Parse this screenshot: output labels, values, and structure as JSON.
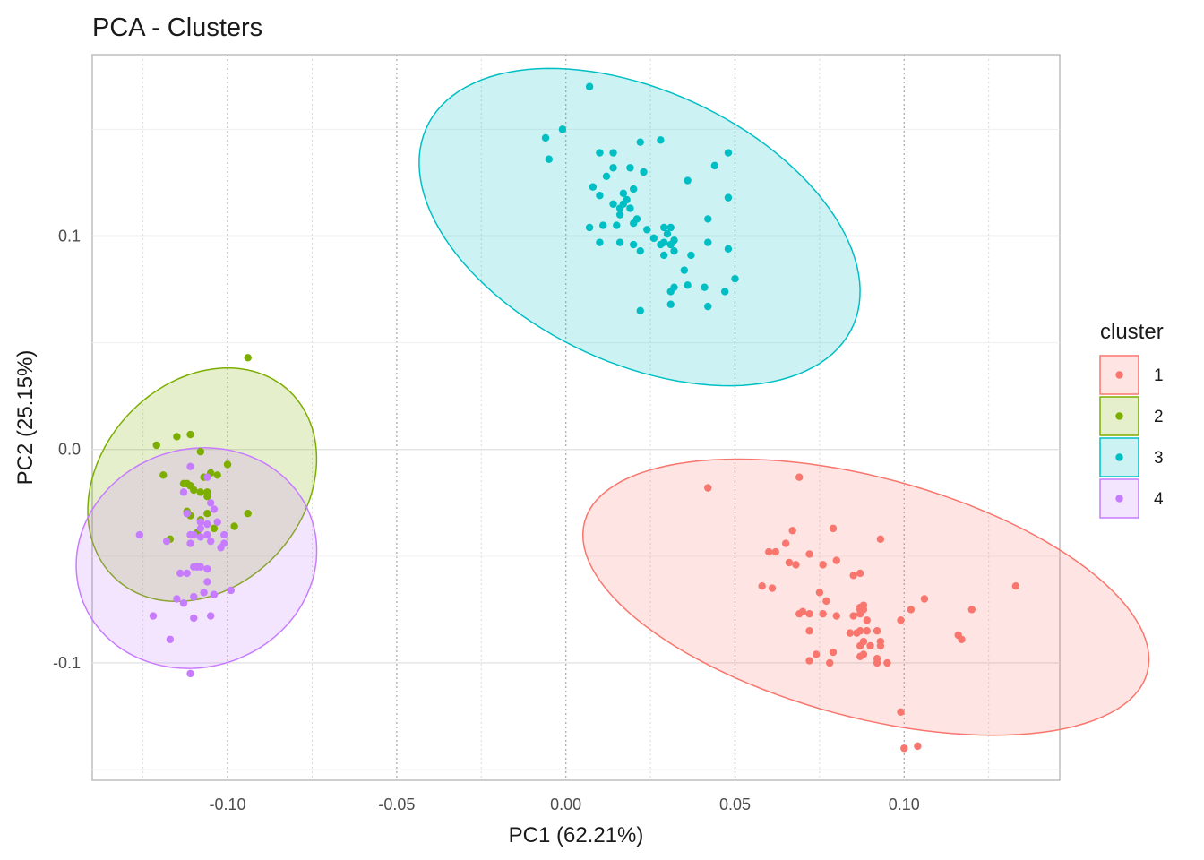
{
  "chart_data": {
    "type": "scatter",
    "title": "PCA - Clusters",
    "xlabel": "PC1 (62.21%)",
    "ylabel": "PC2 (25.15%)",
    "xlim": [
      -0.14,
      0.146
    ],
    "ylim": [
      -0.155,
      0.185
    ],
    "xticks": [
      -0.1,
      -0.05,
      0.0,
      0.05,
      0.1
    ],
    "xtick_labels": [
      "-0.10",
      "-0.05",
      "0.00",
      "0.05",
      "0.10"
    ],
    "yticks": [
      -0.1,
      0.0,
      0.1
    ],
    "ytick_labels": [
      "-0.1",
      "0.0",
      "0.1"
    ],
    "grid": true,
    "legend": {
      "title": "cluster",
      "position": "right"
    },
    "series": [
      {
        "name": "1",
        "color": "#F8766D",
        "ellipse": {
          "cx": 0.0887,
          "cy": -0.0692,
          "rx": 0.0917,
          "ry": 0.0527,
          "angle_deg": -30
        },
        "points": [
          [
            0.042,
            -0.018
          ],
          [
            0.069,
            -0.013
          ],
          [
            0.067,
            -0.038
          ],
          [
            0.079,
            -0.037
          ],
          [
            0.093,
            -0.042
          ],
          [
            0.065,
            -0.044
          ],
          [
            0.072,
            -0.049
          ],
          [
            0.062,
            -0.048
          ],
          [
            0.06,
            -0.048
          ],
          [
            0.066,
            -0.053
          ],
          [
            0.068,
            -0.054
          ],
          [
            0.076,
            -0.054
          ],
          [
            0.08,
            -0.052
          ],
          [
            0.085,
            -0.059
          ],
          [
            0.087,
            -0.058
          ],
          [
            0.058,
            -0.064
          ],
          [
            0.061,
            -0.065
          ],
          [
            0.075,
            -0.067
          ],
          [
            0.077,
            -0.071
          ],
          [
            0.085,
            -0.078
          ],
          [
            0.088,
            -0.073
          ],
          [
            0.087,
            -0.075
          ],
          [
            0.088,
            -0.075
          ],
          [
            0.087,
            -0.074
          ],
          [
            0.087,
            -0.077
          ],
          [
            0.089,
            -0.08
          ],
          [
            0.069,
            -0.077
          ],
          [
            0.072,
            -0.077
          ],
          [
            0.07,
            -0.076
          ],
          [
            0.08,
            -0.078
          ],
          [
            0.076,
            -0.077
          ],
          [
            0.087,
            -0.085
          ],
          [
            0.092,
            -0.085
          ],
          [
            0.099,
            -0.08
          ],
          [
            0.102,
            -0.075
          ],
          [
            0.106,
            -0.07
          ],
          [
            0.072,
            -0.085
          ],
          [
            0.086,
            -0.086
          ],
          [
            0.084,
            -0.086
          ],
          [
            0.089,
            -0.085
          ],
          [
            0.088,
            -0.09
          ],
          [
            0.093,
            -0.09
          ],
          [
            0.093,
            -0.092
          ],
          [
            0.087,
            -0.092
          ],
          [
            0.09,
            -0.092
          ],
          [
            0.079,
            -0.095
          ],
          [
            0.074,
            -0.096
          ],
          [
            0.072,
            -0.099
          ],
          [
            0.078,
            -0.1
          ],
          [
            0.092,
            -0.098
          ],
          [
            0.095,
            -0.1
          ],
          [
            0.088,
            -0.096
          ],
          [
            0.087,
            -0.097
          ],
          [
            0.12,
            -0.075
          ],
          [
            0.116,
            -0.087
          ],
          [
            0.117,
            -0.089
          ],
          [
            0.133,
            -0.064
          ],
          [
            0.099,
            -0.123
          ],
          [
            0.1,
            -0.14
          ],
          [
            0.104,
            -0.139
          ],
          [
            0.092,
            -0.1
          ]
        ]
      },
      {
        "name": "2",
        "color": "#7CAE00",
        "ellipse": {
          "cx": -0.1075,
          "cy": -0.0165,
          "rx": 0.0555,
          "ry": 0.0325,
          "angle_deg": 78
        },
        "points": [
          [
            -0.094,
            0.043
          ],
          [
            -0.111,
            0.007
          ],
          [
            -0.115,
            0.006
          ],
          [
            -0.121,
            0.002
          ],
          [
            -0.108,
            -0.001
          ],
          [
            -0.1,
            -0.007
          ],
          [
            -0.105,
            -0.011
          ],
          [
            -0.107,
            -0.013
          ],
          [
            -0.103,
            -0.012
          ],
          [
            -0.119,
            -0.012
          ],
          [
            -0.113,
            -0.016
          ],
          [
            -0.112,
            -0.016
          ],
          [
            -0.111,
            -0.017
          ],
          [
            -0.108,
            -0.02
          ],
          [
            -0.106,
            -0.02
          ],
          [
            -0.106,
            -0.022
          ],
          [
            -0.11,
            -0.019
          ],
          [
            -0.112,
            -0.029
          ],
          [
            -0.106,
            -0.03
          ],
          [
            -0.111,
            -0.031
          ],
          [
            -0.108,
            -0.033
          ],
          [
            -0.094,
            -0.03
          ],
          [
            -0.098,
            -0.036
          ],
          [
            -0.117,
            -0.042
          ],
          [
            -0.109,
            -0.039
          ],
          [
            -0.104,
            -0.037
          ]
        ]
      },
      {
        "name": "3",
        "color": "#00BFC4",
        "ellipse": {
          "cx": 0.0218,
          "cy": 0.1042,
          "rx": 0.0834,
          "ry": 0.0531,
          "angle_deg": -54
        },
        "points": [
          [
            0.007,
            0.17
          ],
          [
            0.028,
            0.145
          ],
          [
            0.022,
            0.144
          ],
          [
            0.048,
            0.139
          ],
          [
            0.044,
            0.133
          ],
          [
            -0.001,
            0.15
          ],
          [
            -0.006,
            0.146
          ],
          [
            -0.005,
            0.136
          ],
          [
            0.01,
            0.139
          ],
          [
            0.014,
            0.139
          ],
          [
            0.012,
            0.128
          ],
          [
            0.014,
            0.132
          ],
          [
            0.019,
            0.132
          ],
          [
            0.023,
            0.13
          ],
          [
            0.008,
            0.123
          ],
          [
            0.02,
            0.122
          ],
          [
            0.017,
            0.12
          ],
          [
            0.01,
            0.119
          ],
          [
            0.018,
            0.117
          ],
          [
            0.036,
            0.126
          ],
          [
            0.048,
            0.118
          ],
          [
            0.014,
            0.115
          ],
          [
            0.019,
            0.113
          ],
          [
            0.016,
            0.113
          ],
          [
            0.017,
            0.115
          ],
          [
            0.016,
            0.11
          ],
          [
            0.015,
            0.105
          ],
          [
            0.021,
            0.108
          ],
          [
            0.02,
            0.106
          ],
          [
            0.011,
            0.105
          ],
          [
            0.024,
            0.103
          ],
          [
            0.029,
            0.104
          ],
          [
            0.042,
            0.108
          ],
          [
            0.031,
            0.104
          ],
          [
            0.007,
            0.104
          ],
          [
            0.026,
            0.099
          ],
          [
            0.03,
            0.101
          ],
          [
            0.029,
            0.097
          ],
          [
            0.028,
            0.096
          ],
          [
            0.032,
            0.098
          ],
          [
            0.01,
            0.097
          ],
          [
            0.016,
            0.097
          ],
          [
            0.02,
            0.096
          ],
          [
            0.022,
            0.093
          ],
          [
            0.031,
            0.096
          ],
          [
            0.032,
            0.093
          ],
          [
            0.042,
            0.097
          ],
          [
            0.048,
            0.094
          ],
          [
            0.029,
            0.091
          ],
          [
            0.037,
            0.091
          ],
          [
            0.035,
            0.084
          ],
          [
            0.032,
            0.076
          ],
          [
            0.036,
            0.077
          ],
          [
            0.031,
            0.074
          ],
          [
            0.05,
            0.08
          ],
          [
            0.041,
            0.076
          ],
          [
            0.047,
            0.074
          ],
          [
            0.031,
            0.068
          ],
          [
            0.042,
            0.067
          ],
          [
            0.022,
            0.065
          ]
        ]
      },
      {
        "name": "4",
        "color": "#C77CFF",
        "ellipse": {
          "cx": -0.1092,
          "cy": -0.0509,
          "rx": 0.0518,
          "ry": 0.0354,
          "angle_deg": 85
        },
        "points": [
          [
            -0.111,
            -0.008
          ],
          [
            -0.106,
            -0.013
          ],
          [
            -0.113,
            -0.02
          ],
          [
            -0.105,
            -0.025
          ],
          [
            -0.112,
            -0.03
          ],
          [
            -0.104,
            -0.028
          ],
          [
            -0.108,
            -0.034
          ],
          [
            -0.106,
            -0.035
          ],
          [
            -0.108,
            -0.037
          ],
          [
            -0.103,
            -0.034
          ],
          [
            -0.101,
            -0.04
          ],
          [
            -0.11,
            -0.04
          ],
          [
            -0.111,
            -0.04
          ],
          [
            -0.108,
            -0.041
          ],
          [
            -0.106,
            -0.04
          ],
          [
            -0.126,
            -0.04
          ],
          [
            -0.118,
            -0.043
          ],
          [
            -0.111,
            -0.044
          ],
          [
            -0.105,
            -0.043
          ],
          [
            -0.101,
            -0.044
          ],
          [
            -0.102,
            -0.046
          ],
          [
            -0.109,
            -0.055
          ],
          [
            -0.108,
            -0.055
          ],
          [
            -0.106,
            -0.056
          ],
          [
            -0.11,
            -0.055
          ],
          [
            -0.114,
            -0.058
          ],
          [
            -0.112,
            -0.058
          ],
          [
            -0.106,
            -0.062
          ],
          [
            -0.099,
            -0.066
          ],
          [
            -0.107,
            -0.067
          ],
          [
            -0.104,
            -0.068
          ],
          [
            -0.11,
            -0.069
          ],
          [
            -0.115,
            -0.07
          ],
          [
            -0.113,
            -0.072
          ],
          [
            -0.11,
            -0.079
          ],
          [
            -0.105,
            -0.078
          ],
          [
            -0.122,
            -0.078
          ],
          [
            -0.117,
            -0.089
          ],
          [
            -0.111,
            -0.105
          ]
        ]
      }
    ]
  }
}
